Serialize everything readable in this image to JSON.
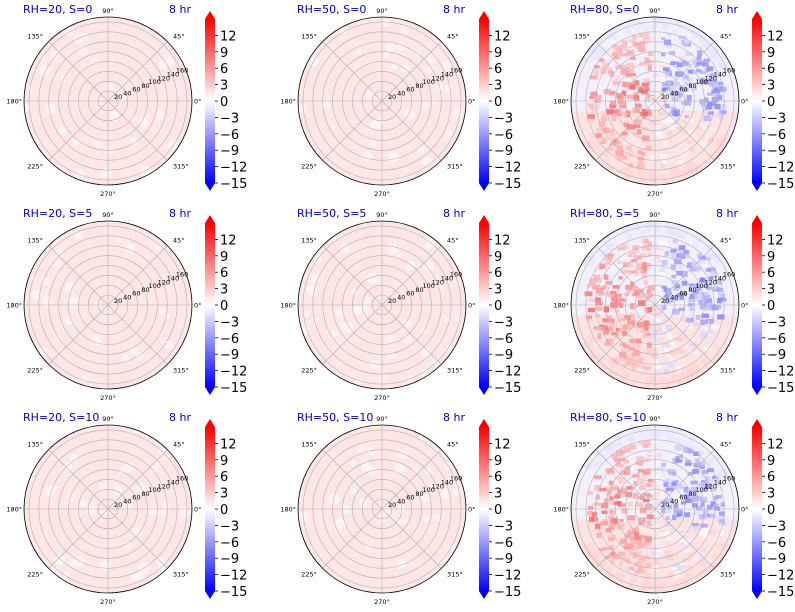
{
  "chart_data": [
    {
      "type": "polar-heatmap",
      "title": "RH=20, S=0",
      "time_label": "8 hr",
      "pattern": "faint-positive",
      "radial_ticks": [
        20,
        40,
        60,
        80,
        100,
        120,
        140,
        160
      ],
      "angle_ticks": [
        "0°",
        "45°",
        "90°",
        "135°",
        "180°",
        "225°",
        "270°",
        "315°"
      ],
      "colorbar_ticks": [
        12,
        9,
        6,
        3,
        0,
        -3,
        -6,
        -9,
        -12,
        -15
      ],
      "clim": [
        -15,
        15
      ]
    },
    {
      "type": "polar-heatmap",
      "title": "RH=50, S=0",
      "time_label": "8 hr",
      "pattern": "faint-positive",
      "radial_ticks": [
        20,
        40,
        60,
        80,
        100,
        120,
        140,
        160
      ],
      "angle_ticks": [
        "0°",
        "45°",
        "90°",
        "135°",
        "180°",
        "225°",
        "270°",
        "315°"
      ],
      "colorbar_ticks": [
        12,
        9,
        6,
        3,
        0,
        -3,
        -6,
        -9,
        -12,
        -15
      ],
      "clim": [
        -15,
        15
      ]
    },
    {
      "type": "polar-heatmap",
      "title": "RH=80, S=0",
      "time_label": "8 hr",
      "pattern": "mixed",
      "radial_ticks": [
        20,
        40,
        60,
        80,
        100,
        120,
        140,
        160
      ],
      "angle_ticks": [
        "0°",
        "45°",
        "90°",
        "135°",
        "180°",
        "225°",
        "270°",
        "315°"
      ],
      "colorbar_ticks": [
        12,
        9,
        6,
        3,
        0,
        -3,
        -6,
        -9,
        -12,
        -15
      ],
      "clim": [
        -15,
        15
      ]
    },
    {
      "type": "polar-heatmap",
      "title": "RH=20, S=5",
      "time_label": "8 hr",
      "pattern": "faint-positive",
      "radial_ticks": [
        20,
        40,
        60,
        80,
        100,
        120,
        140,
        160
      ],
      "angle_ticks": [
        "0°",
        "45°",
        "90°",
        "135°",
        "180°",
        "225°",
        "270°",
        "315°"
      ],
      "colorbar_ticks": [
        12,
        9,
        6,
        3,
        0,
        -3,
        -6,
        -9,
        -12,
        -15
      ],
      "clim": [
        -15,
        15
      ]
    },
    {
      "type": "polar-heatmap",
      "title": "RH=50, S=5",
      "time_label": "8 hr",
      "pattern": "faint-positive",
      "radial_ticks": [
        20,
        40,
        60,
        80,
        100,
        120,
        140,
        160
      ],
      "angle_ticks": [
        "0°",
        "45°",
        "90°",
        "135°",
        "180°",
        "225°",
        "270°",
        "315°"
      ],
      "colorbar_ticks": [
        12,
        9,
        6,
        3,
        0,
        -3,
        -6,
        -9,
        -12,
        -15
      ],
      "clim": [
        -15,
        15
      ]
    },
    {
      "type": "polar-heatmap",
      "title": "RH=80, S=5",
      "time_label": "8 hr",
      "pattern": "mixed",
      "radial_ticks": [
        20,
        40,
        60,
        80,
        100,
        120,
        140,
        160
      ],
      "angle_ticks": [
        "0°",
        "45°",
        "90°",
        "135°",
        "180°",
        "225°",
        "270°",
        "315°"
      ],
      "colorbar_ticks": [
        12,
        9,
        6,
        3,
        0,
        -3,
        -6,
        -9,
        -12,
        -15
      ],
      "clim": [
        -15,
        15
      ]
    },
    {
      "type": "polar-heatmap",
      "title": "RH=20, S=10",
      "time_label": "8 hr",
      "pattern": "faint-positive",
      "radial_ticks": [
        20,
        40,
        60,
        80,
        100,
        120,
        140,
        160
      ],
      "angle_ticks": [
        "0°",
        "45°",
        "90°",
        "135°",
        "180°",
        "225°",
        "270°",
        "315°"
      ],
      "colorbar_ticks": [
        12,
        9,
        6,
        3,
        0,
        -3,
        -6,
        -9,
        -12,
        -15
      ],
      "clim": [
        -15,
        15
      ]
    },
    {
      "type": "polar-heatmap",
      "title": "RH=50, S=10",
      "time_label": "8 hr",
      "pattern": "faint-positive",
      "radial_ticks": [
        20,
        40,
        60,
        80,
        100,
        120,
        140,
        160
      ],
      "angle_ticks": [
        "0°",
        "45°",
        "90°",
        "135°",
        "180°",
        "225°",
        "270°",
        "315°"
      ],
      "colorbar_ticks": [
        12,
        9,
        6,
        3,
        0,
        -3,
        -6,
        -9,
        -12,
        -15
      ],
      "clim": [
        -15,
        15
      ]
    },
    {
      "type": "polar-heatmap",
      "title": "RH=80, S=10",
      "time_label": "8 hr",
      "pattern": "mixed",
      "radial_ticks": [
        20,
        40,
        60,
        80,
        100,
        120,
        140,
        160
      ],
      "angle_ticks": [
        "0°",
        "45°",
        "90°",
        "135°",
        "180°",
        "225°",
        "270°",
        "315°"
      ],
      "colorbar_ticks": [
        12,
        9,
        6,
        3,
        0,
        -3,
        -6,
        -9,
        -12,
        -15
      ],
      "clim": [
        -15,
        15
      ]
    }
  ],
  "colors": {
    "title_text": "#0000cc",
    "colormap_high": "#ff0000",
    "colormap_mid": "#ffffff",
    "colormap_low": "#0000ff",
    "grid": "#b0b0b0"
  }
}
